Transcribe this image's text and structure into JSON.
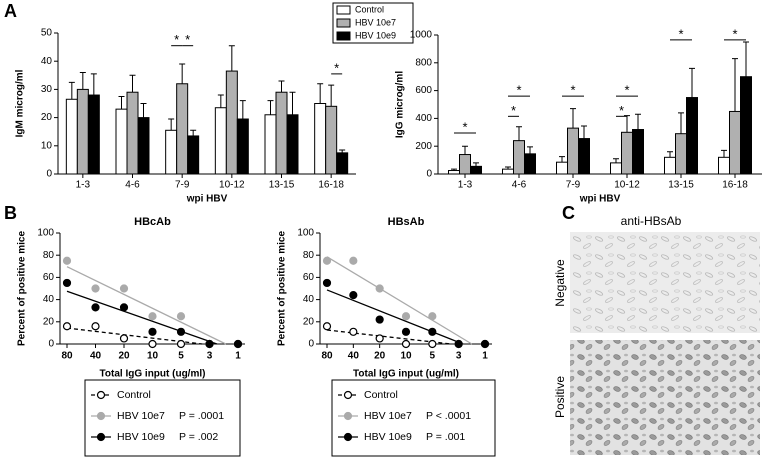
{
  "panel_labels": [
    "A",
    "B",
    "C"
  ],
  "chart_data": [
    {
      "type": "bar",
      "y_label": "IgM microg/ml",
      "x_label": "wpi HBV",
      "categories": [
        "1-3",
        "4-6",
        "7-9",
        "10-12",
        "13-15",
        "16-18"
      ],
      "series": [
        {
          "name": "Control",
          "color": "#ffffff",
          "values": [
            26.5,
            23,
            15.5,
            23.5,
            21,
            25
          ],
          "errors": [
            6,
            4.5,
            4,
            4.5,
            5,
            7
          ]
        },
        {
          "name": "HBV 10e7",
          "color": "#b0b0b0",
          "values": [
            30,
            29,
            32,
            36.5,
            29,
            24
          ],
          "errors": [
            6,
            6,
            7,
            9,
            4,
            7.5
          ]
        },
        {
          "name": "HBV 10e9",
          "color": "#000000",
          "values": [
            28,
            20,
            13.5,
            19.5,
            21,
            7.5
          ],
          "errors": [
            7.5,
            5,
            2,
            6.5,
            8,
            1
          ]
        }
      ],
      "ylim": [
        0,
        50
      ],
      "yticks": [
        0,
        10,
        20,
        30,
        40,
        50
      ],
      "legend": "top",
      "significance": [
        {
          "label": "*",
          "category": "7-9",
          "pair": [
            "Control",
            "HBV 10e7"
          ],
          "y": 45.5
        },
        {
          "label": "*",
          "category": "7-9",
          "pair": [
            "HBV 10e7",
            "HBV 10e9"
          ],
          "y": 45.5
        },
        {
          "label": "*",
          "category": "16-18",
          "pair": [
            "HBV 10e7",
            "HBV 10e9"
          ],
          "y": 35.5
        }
      ]
    },
    {
      "type": "bar",
      "y_label": "IgG microg/ml",
      "x_label": "wpi HBV",
      "categories": [
        "1-3",
        "4-6",
        "7-9",
        "10-12",
        "13-15",
        "16-18"
      ],
      "series": [
        {
          "name": "Control",
          "color": "#ffffff",
          "values": [
            25,
            35,
            85,
            80,
            120,
            120
          ],
          "errors": [
            10,
            15,
            40,
            30,
            40,
            50
          ]
        },
        {
          "name": "HBV 10e7",
          "color": "#b0b0b0",
          "values": [
            140,
            240,
            330,
            300,
            290,
            450
          ],
          "errors": [
            60,
            100,
            140,
            120,
            150,
            380
          ]
        },
        {
          "name": "HBV 10e9",
          "color": "#000000",
          "values": [
            55,
            145,
            255,
            320,
            550,
            700
          ],
          "errors": [
            25,
            50,
            90,
            110,
            210,
            250
          ]
        }
      ],
      "ylim": [
        0,
        1000
      ],
      "yticks": [
        0,
        200,
        400,
        600,
        800,
        1000
      ],
      "significance": [
        {
          "label": "*",
          "category": "1-3",
          "pair": [
            "Control",
            "HBV 10e9"
          ],
          "y": 295
        },
        {
          "label": "*",
          "category": "4-6",
          "pair": [
            "Control",
            "HBV 10e9"
          ],
          "y": 560
        },
        {
          "label": "*",
          "category": "4-6",
          "pair": [
            "Control",
            "HBV 10e7"
          ],
          "y": 415
        },
        {
          "label": "*",
          "category": "7-9",
          "pair": [
            "Control",
            "HBV 10e9"
          ],
          "y": 560
        },
        {
          "label": "*",
          "category": "10-12",
          "pair": [
            "Control",
            "HBV 10e9"
          ],
          "y": 560
        },
        {
          "label": "*",
          "category": "10-12",
          "pair": [
            "Control",
            "HBV 10e7"
          ],
          "y": 415
        },
        {
          "label": "*",
          "category": "13-15",
          "pair": [
            "Control",
            "HBV 10e9"
          ],
          "y": 965
        },
        {
          "label": "*",
          "category": "16-18",
          "pair": [
            "Control",
            "HBV 10e9"
          ],
          "y": 965
        }
      ]
    },
    {
      "type": "scatter",
      "title": "HBcAb",
      "y_label": "Percent of positive mice",
      "x_label": "Total IgG input (ug/ml)",
      "categories": [
        "80",
        "40",
        "20",
        "10",
        "5",
        "3",
        "1"
      ],
      "series": [
        {
          "name": "Control",
          "color": "#ffffff",
          "line_color": "#000000",
          "line_style": "dashed",
          "values": [
            16,
            16,
            5,
            0,
            0,
            0,
            0
          ]
        },
        {
          "name": "HBV 10e7",
          "color": "#aaaaaa",
          "line_color": "#aaaaaa",
          "line_style": "solid",
          "p_label": "P = .0001",
          "values": [
            75,
            50,
            50,
            25,
            25,
            0,
            0
          ]
        },
        {
          "name": "HBV 10e9",
          "color": "#000000",
          "line_color": "#000000",
          "line_style": "solid",
          "p_label": "P = .002",
          "values": [
            55,
            33,
            33,
            11,
            11,
            0,
            0
          ]
        }
      ],
      "ylim": [
        0,
        100
      ],
      "yticks": [
        0,
        20,
        40,
        60,
        80,
        100
      ],
      "legend": "bottom"
    },
    {
      "type": "scatter",
      "title": "HBsAb",
      "y_label": "Percent of positive mice",
      "x_label": "Total IgG input (ug/ml)",
      "categories": [
        "80",
        "40",
        "20",
        "10",
        "5",
        "3",
        "1"
      ],
      "series": [
        {
          "name": "Control",
          "color": "#ffffff",
          "line_color": "#000000",
          "line_style": "dashed",
          "values": [
            16,
            11,
            5,
            0,
            0,
            0,
            0
          ]
        },
        {
          "name": "HBV 10e7",
          "color": "#aaaaaa",
          "line_color": "#aaaaaa",
          "line_style": "solid",
          "p_label": "P < .0001",
          "values": [
            75,
            75,
            50,
            25,
            25,
            0,
            0
          ]
        },
        {
          "name": "HBV 10e9",
          "color": "#000000",
          "line_color": "#000000",
          "line_style": "solid",
          "p_label": "P = .001",
          "values": [
            55,
            44,
            22,
            11,
            11,
            0,
            0
          ]
        }
      ],
      "ylim": [
        0,
        100
      ],
      "yticks": [
        0,
        20,
        40,
        60,
        80,
        100
      ],
      "legend": "bottom"
    }
  ],
  "panel_c": {
    "title": "anti-HBsAb",
    "rows": [
      "Negative",
      "Positive"
    ]
  }
}
